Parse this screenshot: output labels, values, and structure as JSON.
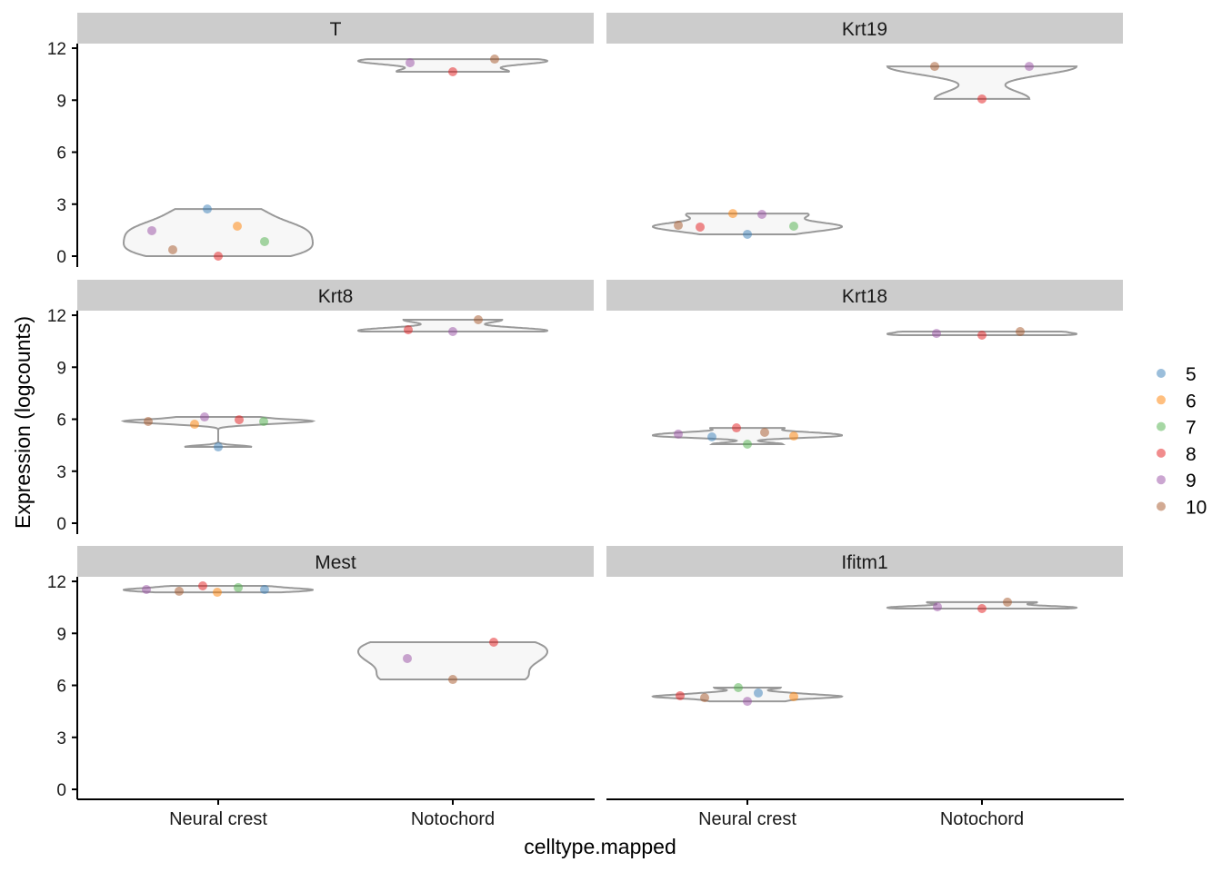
{
  "chart_data": {
    "type": "violin",
    "xlabel": "celltype.mapped",
    "ylabel": "Expression (logcounts)",
    "categories": [
      "Neural crest",
      "Notochord"
    ],
    "ylim": [
      0,
      12
    ],
    "yticks": [
      0,
      3,
      6,
      9,
      12
    ],
    "grid": false,
    "legend": {
      "position": "right",
      "entries": [
        "5",
        "6",
        "7",
        "8",
        "9",
        "10"
      ]
    },
    "colors": {
      "5": "#377EB8",
      "6": "#FF7F00",
      "7": "#4DAF4A",
      "8": "#E41A1C",
      "9": "#984EA3",
      "10": "#A65628"
    },
    "violin_fill": "#F7F7F7",
    "violin_stroke": "#999999",
    "strip_fill": "#CCCCCC",
    "panels": [
      {
        "gene": "T",
        "groups": {
          "Neural crest": {
            "5": 2.72,
            "6": 1.73,
            "7": 0.84,
            "8": 0.0,
            "9": 1.47,
            "10": 0.37
          },
          "Notochord": {
            "9": 11.16,
            "8": 10.64,
            "10": 11.37
          }
        }
      },
      {
        "gene": "Krt19",
        "groups": {
          "Neural crest": {
            "5": 1.26,
            "6": 2.46,
            "7": 1.73,
            "8": 1.68,
            "9": 2.41,
            "10": 1.78
          },
          "Notochord": {
            "10": 10.95,
            "9": 10.95,
            "8": 9.07
          }
        }
      },
      {
        "gene": "Krt8",
        "groups": {
          "Neural crest": {
            "5": 4.4,
            "6": 5.71,
            "7": 5.87,
            "8": 5.97,
            "9": 6.13,
            "10": 5.87
          },
          "Notochord": {
            "8": 11.16,
            "9": 11.06,
            "10": 11.74
          }
        }
      },
      {
        "gene": "Krt18",
        "groups": {
          "Neural crest": {
            "5": 4.98,
            "6": 5.03,
            "7": 4.56,
            "8": 5.5,
            "9": 5.14,
            "10": 5.24
          },
          "Notochord": {
            "9": 10.95,
            "8": 10.85,
            "10": 11.06
          }
        }
      },
      {
        "gene": "Mest",
        "groups": {
          "Neural crest": {
            "5": 11.53,
            "6": 11.37,
            "7": 11.64,
            "8": 11.74,
            "9": 11.53,
            "10": 11.43
          },
          "Notochord": {
            "9": 7.55,
            "8": 8.49,
            "10": 6.34
          }
        }
      },
      {
        "gene": "Ifitm1",
        "groups": {
          "Neural crest": {
            "5": 5.56,
            "6": 5.35,
            "7": 5.87,
            "8": 5.4,
            "9": 5.08,
            "10": 5.29
          },
          "Notochord": {
            "9": 10.53,
            "8": 10.43,
            "10": 10.8
          }
        }
      }
    ]
  }
}
